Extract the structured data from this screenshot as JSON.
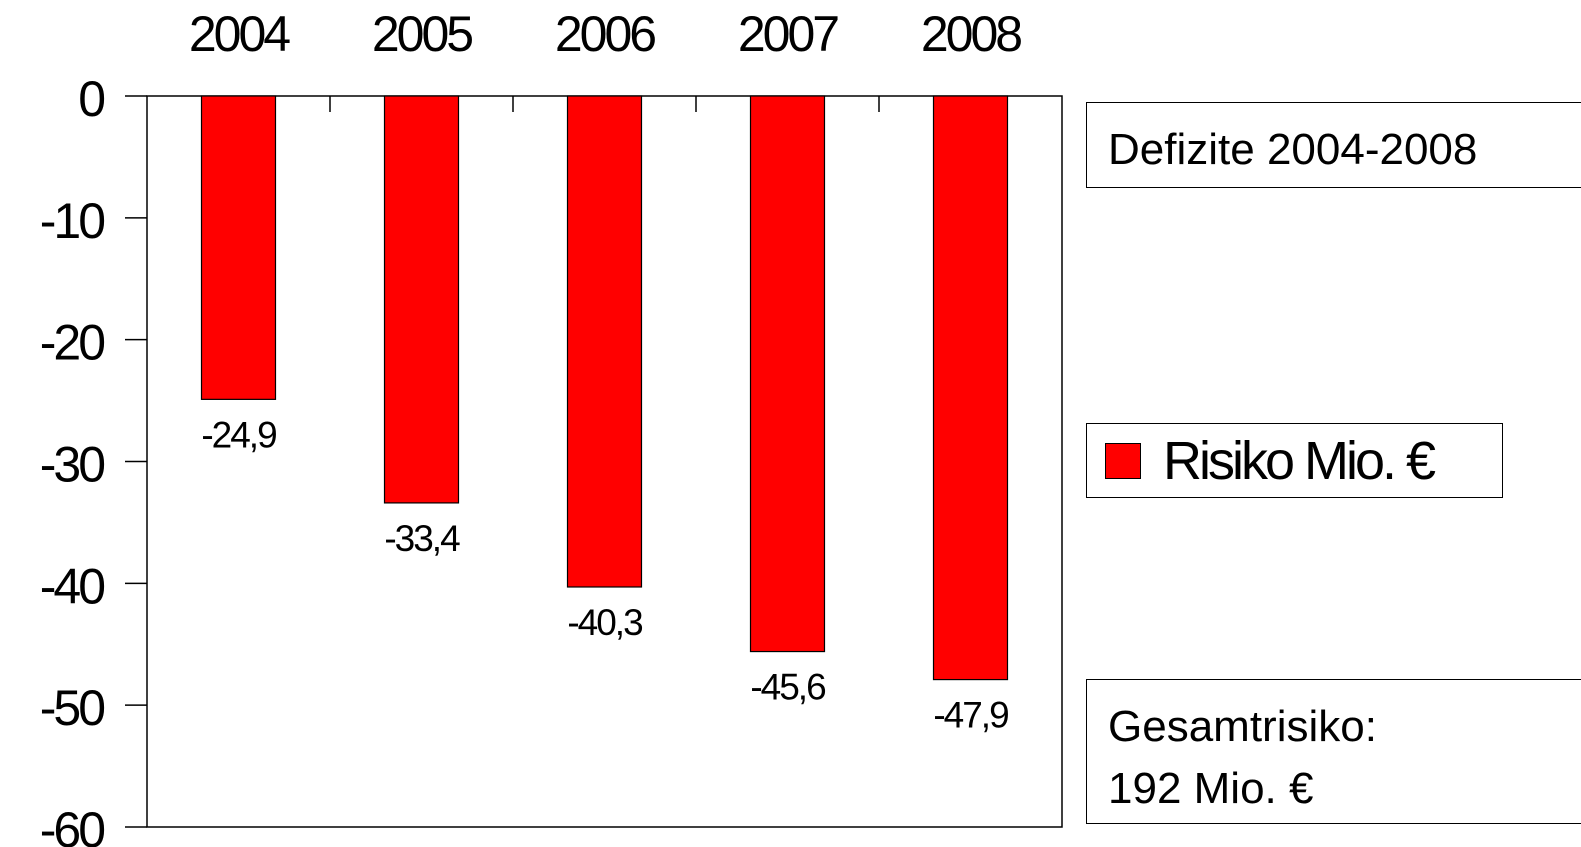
{
  "chart_data": {
    "type": "bar",
    "categories": [
      "2004",
      "2005",
      "2006",
      "2007",
      "2008"
    ],
    "series": [
      {
        "name": "Risiko Mio. €",
        "values": [
          -24.9,
          -33.4,
          -40.3,
          -45.6,
          -47.9
        ]
      }
    ],
    "data_labels": [
      "-24,9",
      "-33,4",
      "-40,3",
      "-45,6",
      "-47,9"
    ],
    "ylim": [
      -60,
      0
    ],
    "yticks": [
      "0",
      "-10",
      "-20",
      "-30",
      "-40",
      "-50",
      "-60"
    ],
    "x_axis_position": "top",
    "grid": false,
    "bar_color": "#ff0000",
    "legend": "right"
  },
  "title": "Defizite 2004-2008",
  "legend": {
    "label": "Risiko Mio. €"
  },
  "total": {
    "line1": "Gesamtrisiko:",
    "line2": "192 Mio. €"
  }
}
